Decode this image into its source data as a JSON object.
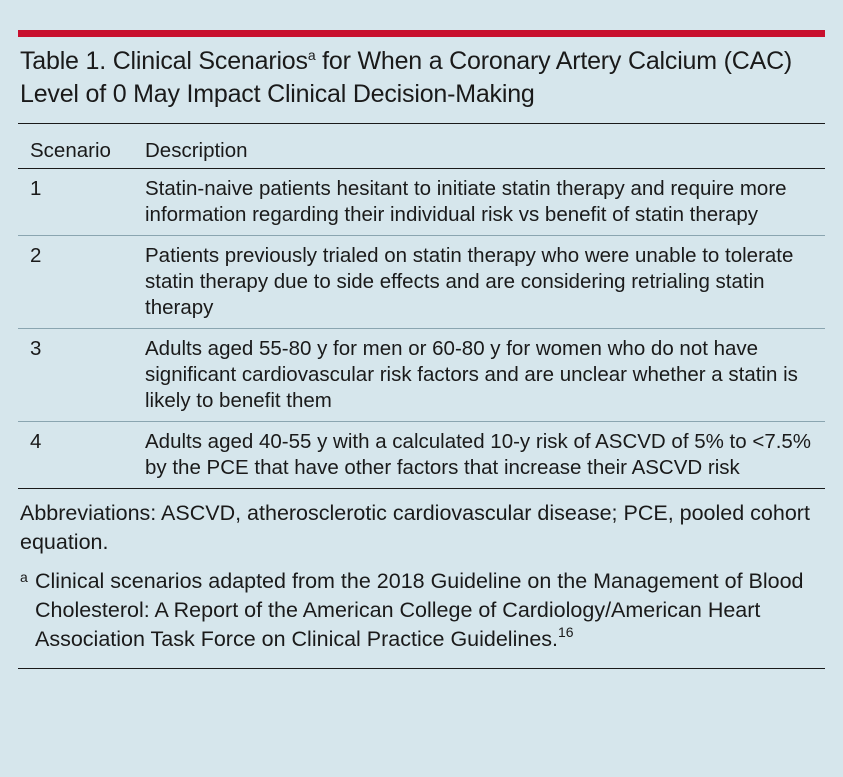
{
  "table": {
    "title": "Table 1. Clinical Scenarios",
    "title_mark": "a",
    "title_rest": " for When a Coronary Artery Calcium (CAC) Level of 0 May Impact Clinical Decision-Making",
    "columns": [
      "Scenario",
      "Description"
    ],
    "rows": [
      {
        "scenario": "1",
        "description": "Statin-naive patients hesitant to initiate statin therapy and require more information regarding their individual risk vs benefit of statin therapy"
      },
      {
        "scenario": "2",
        "description": "Patients previously trialed on statin therapy who were unable to tolerate statin therapy due to side effects and are considering retrialing statin therapy"
      },
      {
        "scenario": "3",
        "description": "Adults aged 55-80 y for men or 60-80 y for women who do not have significant cardiovascular risk factors and are unclear whether a statin is likely to benefit them"
      },
      {
        "scenario": "4",
        "description": "Adults aged 40-55 y with a calculated 10-y risk of ASCVD of 5% to <7.5% by the PCE that have other factors that increase their ASCVD risk"
      }
    ]
  },
  "notes": {
    "abbreviations": "Abbreviations: ASCVD, atherosclerotic cardiovascular disease; PCE, pooled cohort equation.",
    "footnote_mark": "a",
    "footnote_text": "Clinical scenarios adapted from the 2018 Guideline on the Management of Blood Cholesterol: A Report of the American College of Cardiology/American Heart Association Task Force on Clinical Practice Guidelines.",
    "footnote_ref": "16"
  },
  "colors": {
    "background": "#d6e6ec",
    "accent_rule": "#c8102e"
  }
}
